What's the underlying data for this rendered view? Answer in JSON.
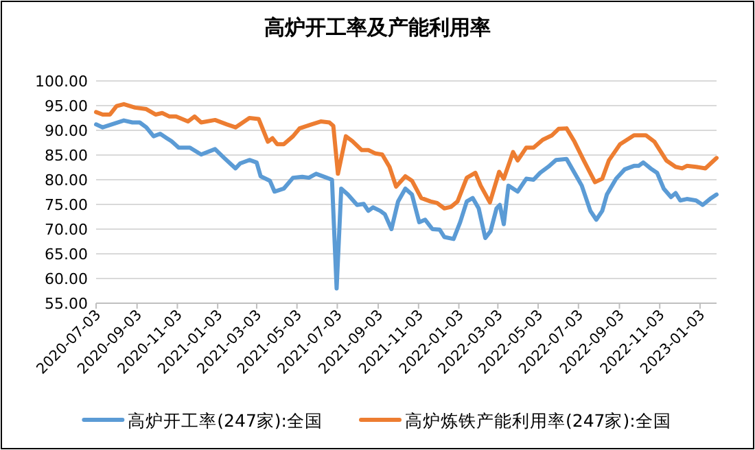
{
  "chart_data": {
    "type": "line",
    "title": "高炉开工率及产能利用率",
    "grid": "y",
    "legend": "bottom",
    "marker": "none",
    "line_style": "solid",
    "xlim": [
      "2020-07-03",
      "2023-01-28"
    ],
    "xticks": [
      "2020-07-03",
      "2020-09-03",
      "2020-11-03",
      "2021-01-03",
      "2021-03-03",
      "2021-05-03",
      "2021-07-03",
      "2021-09-03",
      "2021-11-03",
      "2022-01-03",
      "2022-03-03",
      "2022-05-03",
      "2022-07-03",
      "2022-09-03",
      "2022-11-03",
      "2023-01-03"
    ],
    "ylim": [
      55,
      100
    ],
    "yticks": [
      {
        "value": 55,
        "label": "55.00"
      },
      {
        "value": 60,
        "label": "60.00"
      },
      {
        "value": 65,
        "label": "65.00"
      },
      {
        "value": 70,
        "label": "70.00"
      },
      {
        "value": 75,
        "label": "75.00"
      },
      {
        "value": 80,
        "label": "80.00"
      },
      {
        "value": 85,
        "label": "85.00"
      },
      {
        "value": 90,
        "label": "90.00"
      },
      {
        "value": 95,
        "label": "95.00"
      },
      {
        "value": 100,
        "label": "100.00"
      }
    ],
    "series": [
      {
        "name": "高炉开工率(247家):全国",
        "color": "#5b9bd5",
        "x": [
          "2020-07-03",
          "2020-07-13",
          "2020-08-14",
          "2020-08-27",
          "2020-09-07",
          "2020-09-17",
          "2020-09-28",
          "2020-10-08",
          "2020-10-18",
          "2020-10-25",
          "2020-11-05",
          "2020-11-22",
          "2020-12-09",
          "2020-12-30",
          "2021-01-13",
          "2021-01-30",
          "2021-02-06",
          "2021-02-20",
          "2021-03-03",
          "2021-03-09",
          "2021-03-23",
          "2021-03-30",
          "2021-04-13",
          "2021-04-27",
          "2021-05-11",
          "2021-05-21",
          "2021-06-01",
          "2021-06-15",
          "2021-06-25",
          "2021-07-02",
          "2021-07-09",
          "2021-07-19",
          "2021-08-02",
          "2021-08-12",
          "2021-08-19",
          "2021-08-26",
          "2021-09-06",
          "2021-09-13",
          "2021-09-23",
          "2021-10-03",
          "2021-10-14",
          "2021-10-24",
          "2021-11-04",
          "2021-11-13",
          "2021-11-24",
          "2021-12-05",
          "2021-12-12",
          "2021-12-26",
          "2022-01-05",
          "2022-01-15",
          "2022-01-24",
          "2022-02-02",
          "2022-02-12",
          "2022-02-20",
          "2022-03-01",
          "2022-03-06",
          "2022-03-12",
          "2022-03-19",
          "2022-04-02",
          "2022-04-15",
          "2022-04-26",
          "2022-05-06",
          "2022-05-20",
          "2022-05-30",
          "2022-06-15",
          "2022-06-27",
          "2022-07-08",
          "2022-07-21",
          "2022-07-30",
          "2022-08-08",
          "2022-08-15",
          "2022-08-29",
          "2022-09-11",
          "2022-09-25",
          "2022-10-02",
          "2022-10-09",
          "2022-10-20",
          "2022-10-30",
          "2022-11-09",
          "2022-11-20",
          "2022-11-27",
          "2022-12-04",
          "2022-12-14",
          "2022-12-28",
          "2023-01-07",
          "2023-01-18",
          "2023-01-28"
        ],
        "values": [
          91.2,
          90.6,
          92.0,
          91.6,
          91.6,
          90.6,
          88.8,
          89.3,
          88.4,
          87.8,
          86.5,
          86.5,
          85.1,
          86.2,
          84.4,
          82.3,
          83.3,
          84.0,
          83.5,
          80.7,
          79.8,
          77.6,
          78.2,
          80.4,
          80.6,
          80.4,
          81.2,
          80.5,
          80.0,
          58.0,
          78.2,
          77.0,
          74.9,
          75.1,
          73.7,
          74.4,
          73.7,
          73.0,
          70.0,
          75.6,
          78.2,
          77.0,
          71.4,
          71.9,
          70.0,
          69.9,
          68.4,
          68.0,
          71.4,
          75.6,
          76.3,
          74.2,
          68.2,
          69.6,
          74.2,
          74.9,
          71.0,
          78.8,
          77.6,
          80.2,
          80.0,
          81.4,
          82.8,
          84.0,
          84.2,
          81.4,
          78.8,
          73.7,
          71.9,
          73.7,
          77.0,
          80.2,
          82.1,
          82.8,
          82.8,
          83.5,
          82.3,
          81.4,
          78.2,
          76.5,
          77.3,
          75.8,
          76.1,
          75.8,
          74.9,
          76.1,
          77.0
        ]
      },
      {
        "name": "高炉炼铁产能利用率(247家):全国",
        "color": "#ed7d31",
        "x": [
          "2020-07-03",
          "2020-07-13",
          "2020-07-24",
          "2020-08-03",
          "2020-08-14",
          "2020-08-31",
          "2020-09-17",
          "2020-10-01",
          "2020-10-11",
          "2020-10-22",
          "2020-11-01",
          "2020-11-19",
          "2020-11-29",
          "2020-12-09",
          "2020-12-30",
          "2021-01-17",
          "2021-01-30",
          "2021-02-20",
          "2021-03-06",
          "2021-03-20",
          "2021-03-27",
          "2021-04-03",
          "2021-04-13",
          "2021-04-27",
          "2021-05-07",
          "2021-05-25",
          "2021-06-08",
          "2021-06-21",
          "2021-06-27",
          "2021-07-04",
          "2021-07-16",
          "2021-07-26",
          "2021-08-09",
          "2021-08-19",
          "2021-08-30",
          "2021-09-09",
          "2021-09-20",
          "2021-09-30",
          "2021-10-14",
          "2021-10-24",
          "2021-11-07",
          "2021-11-21",
          "2021-12-01",
          "2021-12-12",
          "2021-12-22",
          "2022-01-01",
          "2022-01-15",
          "2022-01-28",
          "2022-02-05",
          "2022-02-19",
          "2022-03-05",
          "2022-03-12",
          "2022-03-26",
          "2022-04-02",
          "2022-04-15",
          "2022-04-26",
          "2022-05-10",
          "2022-05-24",
          "2022-06-03",
          "2022-06-15",
          "2022-06-27",
          "2022-07-11",
          "2022-07-28",
          "2022-08-08",
          "2022-08-18",
          "2022-09-04",
          "2022-09-25",
          "2022-10-13",
          "2022-10-26",
          "2022-11-13",
          "2022-11-27",
          "2022-12-07",
          "2022-12-14",
          "2022-12-28",
          "2023-01-11",
          "2023-01-28"
        ],
        "values": [
          93.7,
          93.2,
          93.2,
          94.9,
          95.3,
          94.6,
          94.3,
          93.2,
          93.5,
          92.8,
          92.8,
          91.8,
          92.8,
          91.6,
          92.1,
          91.2,
          90.6,
          92.5,
          92.3,
          87.7,
          88.4,
          87.2,
          87.2,
          88.8,
          90.4,
          91.2,
          91.8,
          91.6,
          90.9,
          81.2,
          88.8,
          87.8,
          86.0,
          86.0,
          85.3,
          85.1,
          82.6,
          78.6,
          80.7,
          79.8,
          76.3,
          75.6,
          75.3,
          74.2,
          74.5,
          75.6,
          80.4,
          81.4,
          78.8,
          75.4,
          81.6,
          80.2,
          85.6,
          83.9,
          86.5,
          86.5,
          88.1,
          89.0,
          90.3,
          90.4,
          87.7,
          83.9,
          79.5,
          80.2,
          83.9,
          87.2,
          89.0,
          89.0,
          87.7,
          83.9,
          82.6,
          82.3,
          82.8,
          82.6,
          82.3,
          84.4
        ]
      }
    ]
  }
}
